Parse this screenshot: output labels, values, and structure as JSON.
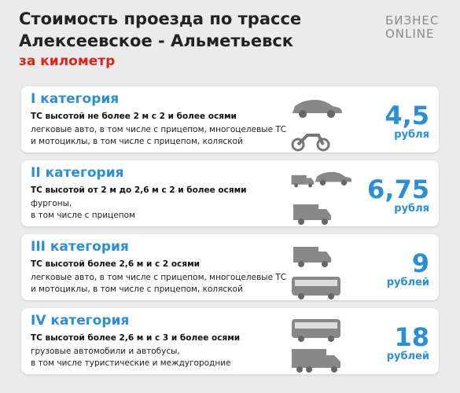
{
  "header": {
    "title_lines": [
      "Стоимость проезда по трассе",
      "Алексеевское - Альметьевск"
    ],
    "subtitle": "за километр",
    "logo_lines": [
      "БИЗНЕС",
      "ONLINE"
    ]
  },
  "categories": [
    {
      "name": "I категория",
      "criteria": "ТС высотой не более 2 м с 2 и более осями",
      "description_lines": [
        "легковые авто, в том числе с прицепом, многоцелевые ТС",
        "и мотоциклы, в том числе с прицепом, коляской"
      ],
      "price": "4,5",
      "unit": "рубля"
    },
    {
      "name": "II категория",
      "criteria": "ТС высотой от 2 м до 2,6 м с 2 и более осями",
      "description_lines": [
        "фургоны,",
        "в том числе с прицепом"
      ],
      "price": "6,75",
      "unit": "рубля"
    },
    {
      "name": "III категория",
      "criteria": "ТС высотой более 2,6 м и с 2 осями",
      "description_lines": [
        "легковые авто, в том числе с прицепом, многоцелевые ТС",
        "и мотоциклы, в том числе с прицепом, коляской"
      ],
      "price": "9",
      "unit": "рублей"
    },
    {
      "name": "IV категория",
      "criteria": "ТС высотой более 2,6 м и с 3 и более осями",
      "description_lines": [
        "грузовые автомобили и автобусы,",
        "в том числе туристические и междугородние"
      ],
      "price": "18",
      "unit": "рублей"
    }
  ]
}
